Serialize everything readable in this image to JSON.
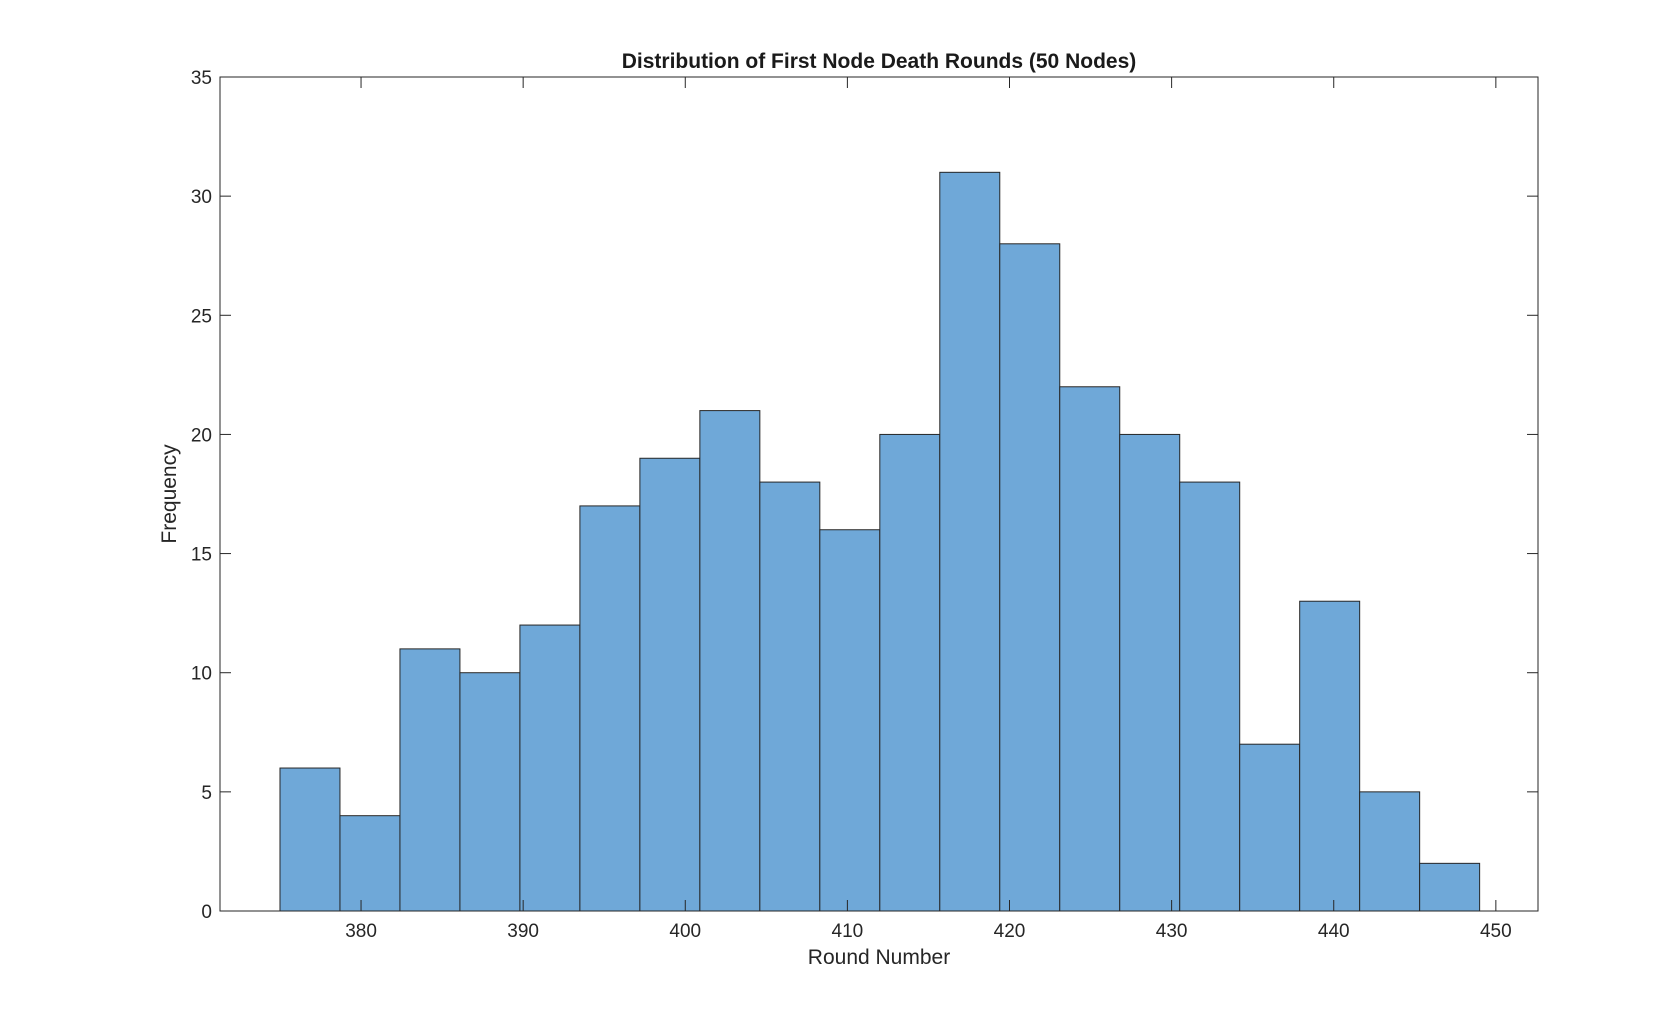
{
  "chart_data": {
    "type": "bar",
    "title": "Distribution of First Node Death Rounds (50 Nodes)",
    "xlabel": "Round Number",
    "ylabel": "Frequency",
    "xlim": [
      371.3,
      452.6
    ],
    "ylim": [
      0,
      35
    ],
    "xticks": [
      380,
      390,
      400,
      410,
      420,
      430,
      440,
      450
    ],
    "yticks": [
      0,
      5,
      10,
      15,
      20,
      25,
      30,
      35
    ],
    "bin_edges": [
      375.0,
      378.7,
      382.4,
      386.1,
      389.8,
      393.5,
      397.2,
      400.9,
      404.6,
      408.3,
      412.0,
      415.7,
      419.4,
      423.1,
      426.8,
      430.5,
      434.2,
      437.9,
      441.6,
      445.3,
      449.0
    ],
    "values": [
      6,
      4,
      11,
      10,
      12,
      17,
      19,
      21,
      18,
      16,
      20,
      31,
      28,
      22,
      20,
      18,
      7,
      13,
      5,
      2
    ],
    "bar_color": "#6fa8d8",
    "edge_color": "#262626",
    "grid": false
  }
}
